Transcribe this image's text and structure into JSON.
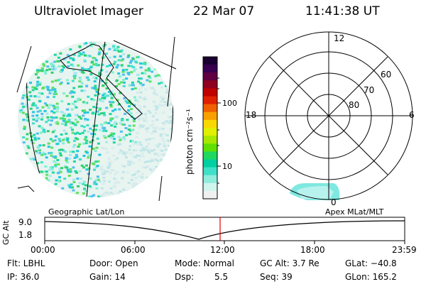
{
  "header": {
    "instrument": "Ultraviolet Imager",
    "date": "22 Mar 07",
    "time": "11:41:38 UT"
  },
  "colorbar": {
    "unit_label": "photon cm⁻²s⁻¹",
    "ticks": [
      "100",
      "10"
    ],
    "colors": [
      "#1a0030",
      "#3a0050",
      "#600040",
      "#900020",
      "#c00000",
      "#e02000",
      "#f06000",
      "#f8a000",
      "#f8d800",
      "#e0f000",
      "#a8e800",
      "#60e000",
      "#20d860",
      "#00d0a0",
      "#40e0c8",
      "#90ecdc",
      "#d0f4ee",
      "#f0f0f0"
    ]
  },
  "polar_plot": {
    "mlt_labels": {
      "top": "12",
      "left": "18",
      "right": "6",
      "bottom": "0"
    },
    "lat_labels": [
      "60",
      "70",
      "80"
    ]
  },
  "timeline": {
    "left_title": "Geographic Lat/Lon",
    "right_title": "Apex MLat/MLT",
    "ylabel": "GC Alt",
    "ytick_top": "9.0",
    "ytick_bottom": "1.8",
    "xticks": [
      "00:00",
      "06:00",
      "12:00",
      "18:00",
      "23:59"
    ],
    "current_marker_hour": 11.69,
    "marker_color": "#e00000"
  },
  "status": {
    "row1": [
      "Flt: LBHL",
      "Door: Open",
      "Mode: Normal",
      "GC Alt: 3.7 Re",
      "GLat: −40.8"
    ],
    "row2": [
      "IP: 36.0",
      "Gain: 14",
      "Dsp:",
      "5.5",
      "Seq: 39",
      "GLon: 165.2"
    ]
  }
}
